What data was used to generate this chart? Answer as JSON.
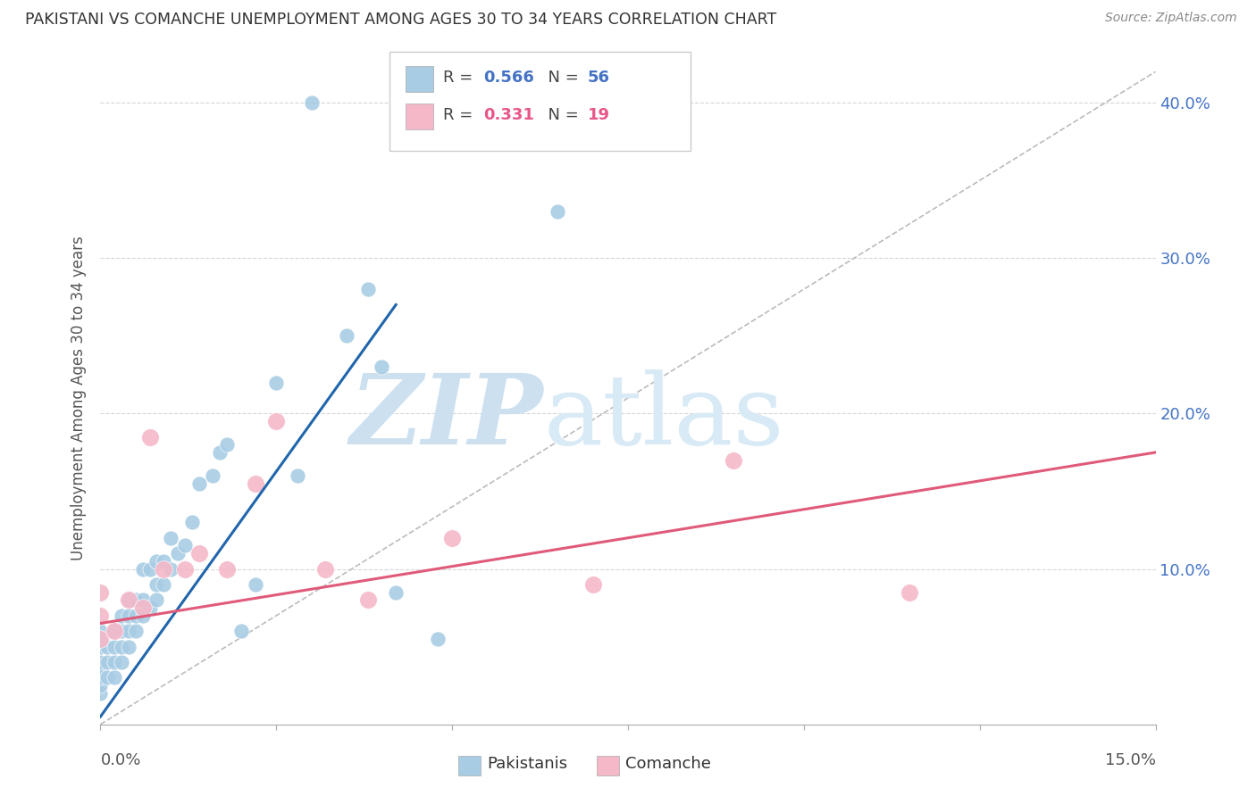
{
  "title": "PAKISTANI VS COMANCHE UNEMPLOYMENT AMONG AGES 30 TO 34 YEARS CORRELATION CHART",
  "source": "Source: ZipAtlas.com",
  "ylabel": "Unemployment Among Ages 30 to 34 years",
  "legend_label_pakistani": "Pakistanis",
  "legend_label_comanche": "Comanche",
  "pakistani_color": "#a8cce4",
  "comanche_color": "#f4b8c8",
  "pakistani_line_color": "#2166ac",
  "comanche_line_color": "#e05a7a",
  "diagonal_color": "#bbbbbb",
  "xmin": 0.0,
  "xmax": 0.15,
  "ymin": 0.0,
  "ymax": 0.42,
  "r_pakistani": "0.566",
  "n_pakistani": "56",
  "r_comanche": "0.331",
  "n_comanche": "19",
  "pakistani_x": [
    0.0,
    0.0,
    0.0,
    0.0,
    0.0,
    0.0,
    0.0,
    0.0,
    0.001,
    0.001,
    0.001,
    0.002,
    0.002,
    0.002,
    0.002,
    0.003,
    0.003,
    0.003,
    0.003,
    0.004,
    0.004,
    0.004,
    0.004,
    0.005,
    0.005,
    0.005,
    0.006,
    0.006,
    0.006,
    0.007,
    0.007,
    0.008,
    0.008,
    0.008,
    0.009,
    0.009,
    0.01,
    0.01,
    0.011,
    0.012,
    0.013,
    0.014,
    0.016,
    0.017,
    0.018,
    0.02,
    0.022,
    0.025,
    0.028,
    0.03,
    0.035,
    0.038,
    0.04,
    0.042,
    0.048,
    0.065
  ],
  "pakistani_y": [
    0.02,
    0.025,
    0.03,
    0.035,
    0.04,
    0.05,
    0.055,
    0.06,
    0.03,
    0.04,
    0.05,
    0.03,
    0.04,
    0.05,
    0.06,
    0.04,
    0.05,
    0.06,
    0.07,
    0.05,
    0.06,
    0.07,
    0.08,
    0.06,
    0.07,
    0.08,
    0.07,
    0.08,
    0.1,
    0.075,
    0.1,
    0.08,
    0.09,
    0.105,
    0.09,
    0.105,
    0.1,
    0.12,
    0.11,
    0.115,
    0.13,
    0.155,
    0.16,
    0.175,
    0.18,
    0.06,
    0.09,
    0.22,
    0.16,
    0.4,
    0.25,
    0.28,
    0.23,
    0.085,
    0.055,
    0.33
  ],
  "comanche_x": [
    0.0,
    0.0,
    0.0,
    0.002,
    0.004,
    0.006,
    0.007,
    0.009,
    0.012,
    0.014,
    0.018,
    0.022,
    0.025,
    0.032,
    0.038,
    0.05,
    0.07,
    0.09,
    0.115
  ],
  "comanche_y": [
    0.055,
    0.07,
    0.085,
    0.06,
    0.08,
    0.075,
    0.185,
    0.1,
    0.1,
    0.11,
    0.1,
    0.155,
    0.195,
    0.1,
    0.08,
    0.12,
    0.09,
    0.17,
    0.085
  ],
  "pakistani_trend_x": [
    0.0,
    0.042
  ],
  "pakistani_trend_y": [
    0.005,
    0.27
  ],
  "comanche_trend_x": [
    0.0,
    0.15
  ],
  "comanche_trend_y": [
    0.065,
    0.175
  ]
}
